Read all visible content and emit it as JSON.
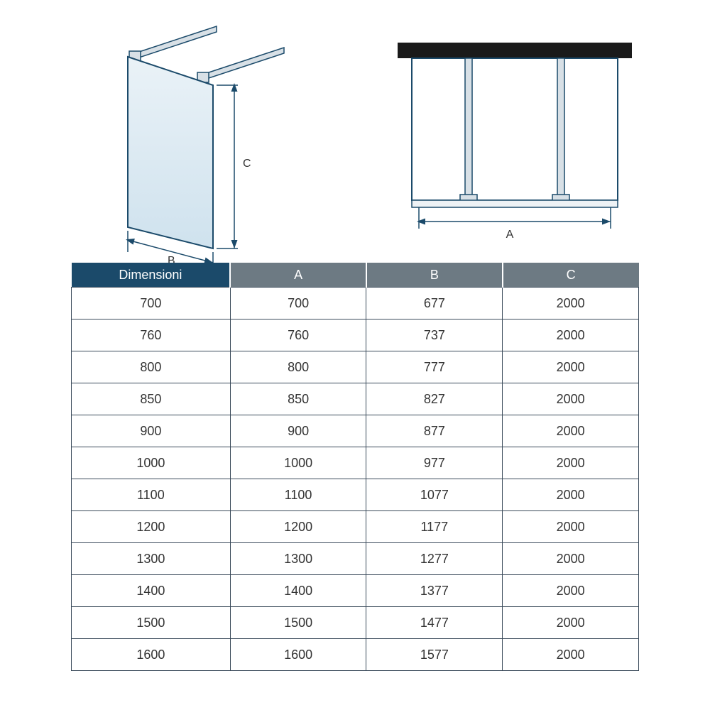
{
  "diagrams": {
    "panel_label_B": "B",
    "panel_label_C": "C",
    "top_label_A": "A",
    "line_color": "#1b4a6a",
    "glass_top_color": "#eaf2f7",
    "glass_bottom_color": "#cfe2ee",
    "top_bar_color": "#1a1a1a",
    "support_color": "#b8c4cc"
  },
  "table": {
    "header_bg_first": "#1b4a6a",
    "header_bg_rest": "#6d7a83",
    "border_color": "#3a4a5a",
    "text_color": "#333333",
    "columns": [
      "Dimensioni",
      "A",
      "B",
      "C"
    ],
    "col_widths_pct": [
      28,
      24,
      24,
      24
    ],
    "rows": [
      [
        "700",
        "700",
        "677",
        "2000"
      ],
      [
        "760",
        "760",
        "737",
        "2000"
      ],
      [
        "800",
        "800",
        "777",
        "2000"
      ],
      [
        "850",
        "850",
        "827",
        "2000"
      ],
      [
        "900",
        "900",
        "877",
        "2000"
      ],
      [
        "1000",
        "1000",
        "977",
        "2000"
      ],
      [
        "1100",
        "1100",
        "1077",
        "2000"
      ],
      [
        "1200",
        "1200",
        "1177",
        "2000"
      ],
      [
        "1300",
        "1300",
        "1277",
        "2000"
      ],
      [
        "1400",
        "1400",
        "1377",
        "2000"
      ],
      [
        "1500",
        "1500",
        "1477",
        "2000"
      ],
      [
        "1600",
        "1600",
        "1577",
        "2000"
      ]
    ]
  }
}
